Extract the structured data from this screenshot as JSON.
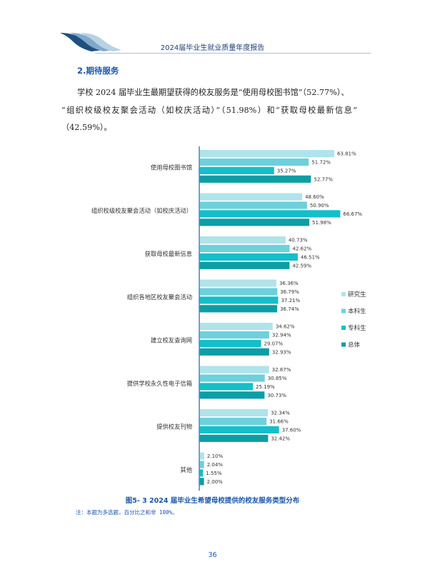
{
  "header": {
    "title": "2024届毕业生就业质量年度报告"
  },
  "section": {
    "heading": "2.期待服务"
  },
  "paragraph": {
    "line1": "学校 2024 届毕业生最期望获得的校友服务是“使用母校图书馆”（52.77%）、",
    "line2": "“组织校级校友聚会活动（如校庆活动）”（51.98%）和“获取母校最新信息”",
    "line3": "（42.59%）。"
  },
  "colors": {
    "研究生": "#b0e3ea",
    "本科生": "#6dd0db",
    "专科生": "#14bfc9",
    "总体": "#0c9ea6",
    "axis": "#2a6cb0"
  },
  "chart_data": {
    "type": "bar",
    "orientation": "horizontal",
    "title": "图5- 3  2024 届毕业生希望母校提供的校友服务类型分布",
    "categories": [
      "使用母校图书馆",
      "组织校级校友聚会活动（如校庆活动）",
      "获取母校最新信息",
      "组织各地区校友聚会活动",
      "建立校友查询网",
      "提供学校永久性电子信箱",
      "提供校友刊物",
      "其他"
    ],
    "series": [
      {
        "name": "研究生",
        "values": [
          63.81,
          48.6,
          40.73,
          36.36,
          34.62,
          32.87,
          32.34,
          2.1
        ],
        "labels": [
          "63.81%",
          "48.60%",
          "40.73%",
          "36.36%",
          "34.62%",
          "32.87%",
          "32.34%",
          "2.10%"
        ]
      },
      {
        "name": "本科生",
        "values": [
          51.72,
          50.9,
          42.62,
          36.79,
          32.94,
          30.85,
          31.66,
          2.04
        ],
        "labels": [
          "51.72%",
          "50.90%",
          "42.62%",
          "36.79%",
          "32.94%",
          "30.85%",
          "31.66%",
          "2.04%"
        ]
      },
      {
        "name": "专科生",
        "values": [
          35.27,
          66.67,
          46.51,
          37.21,
          29.07,
          25.19,
          37.6,
          1.55
        ],
        "labels": [
          "35.27%",
          "66.67%",
          "46.51%",
          "37.21%",
          "29.07%",
          "25.19%",
          "37.60%",
          "1.55%"
        ]
      },
      {
        "name": "总体",
        "values": [
          52.77,
          51.98,
          42.59,
          36.74,
          32.93,
          30.73,
          32.42,
          2.0
        ],
        "labels": [
          "52.77%",
          "51.98%",
          "42.59%",
          "36.74%",
          "32.93%",
          "30.73%",
          "32.42%",
          "2.00%"
        ]
      }
    ],
    "legend_position": "right",
    "grid": false
  },
  "figure": {
    "caption": "图5- 3  2024 届毕业生希望母校提供的校友服务类型分布",
    "note": "注：本题为多选题，百分比之和非 100%。"
  },
  "page_number": "36"
}
